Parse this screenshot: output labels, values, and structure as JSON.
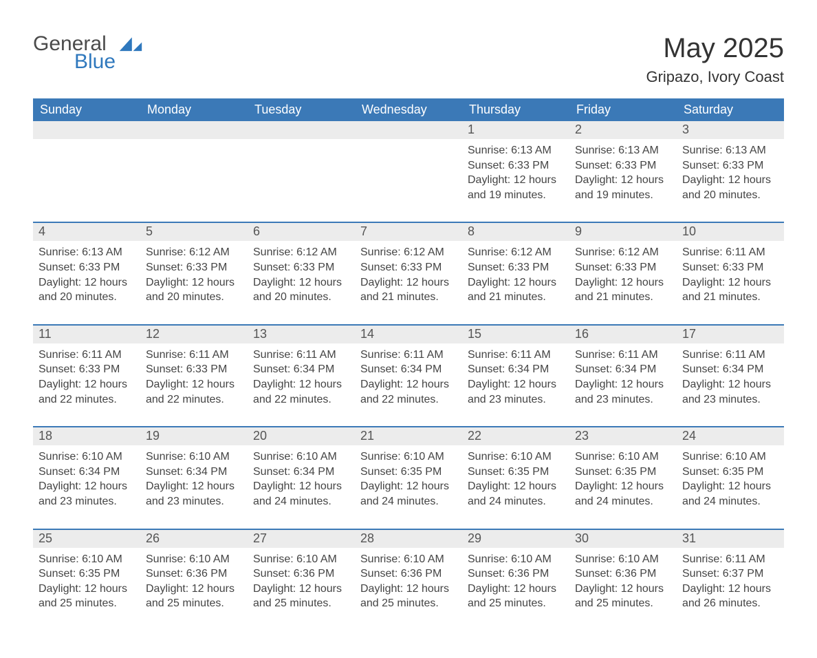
{
  "brand": {
    "word1": "General",
    "word2": "Blue",
    "accent": "#2f78bd"
  },
  "title": "May 2025",
  "subtitle": "Gripazo, Ivory Coast",
  "colors": {
    "header_bg": "#3b79b7",
    "header_text": "#ffffff",
    "row_divider": "#3b79b7",
    "daynum_bg": "#ececec",
    "body_text": "#444444",
    "page_bg": "#ffffff"
  },
  "weekdays": [
    "Sunday",
    "Monday",
    "Tuesday",
    "Wednesday",
    "Thursday",
    "Friday",
    "Saturday"
  ],
  "cells": [
    {
      "blank": true
    },
    {
      "blank": true
    },
    {
      "blank": true
    },
    {
      "blank": true
    },
    {
      "day": 1,
      "sunrise": "6:13 AM",
      "sunset": "6:33 PM",
      "daylight": "12 hours and 19 minutes."
    },
    {
      "day": 2,
      "sunrise": "6:13 AM",
      "sunset": "6:33 PM",
      "daylight": "12 hours and 19 minutes."
    },
    {
      "day": 3,
      "sunrise": "6:13 AM",
      "sunset": "6:33 PM",
      "daylight": "12 hours and 20 minutes."
    },
    {
      "day": 4,
      "sunrise": "6:13 AM",
      "sunset": "6:33 PM",
      "daylight": "12 hours and 20 minutes."
    },
    {
      "day": 5,
      "sunrise": "6:12 AM",
      "sunset": "6:33 PM",
      "daylight": "12 hours and 20 minutes."
    },
    {
      "day": 6,
      "sunrise": "6:12 AM",
      "sunset": "6:33 PM",
      "daylight": "12 hours and 20 minutes."
    },
    {
      "day": 7,
      "sunrise": "6:12 AM",
      "sunset": "6:33 PM",
      "daylight": "12 hours and 21 minutes."
    },
    {
      "day": 8,
      "sunrise": "6:12 AM",
      "sunset": "6:33 PM",
      "daylight": "12 hours and 21 minutes."
    },
    {
      "day": 9,
      "sunrise": "6:12 AM",
      "sunset": "6:33 PM",
      "daylight": "12 hours and 21 minutes."
    },
    {
      "day": 10,
      "sunrise": "6:11 AM",
      "sunset": "6:33 PM",
      "daylight": "12 hours and 21 minutes."
    },
    {
      "day": 11,
      "sunrise": "6:11 AM",
      "sunset": "6:33 PM",
      "daylight": "12 hours and 22 minutes."
    },
    {
      "day": 12,
      "sunrise": "6:11 AM",
      "sunset": "6:33 PM",
      "daylight": "12 hours and 22 minutes."
    },
    {
      "day": 13,
      "sunrise": "6:11 AM",
      "sunset": "6:34 PM",
      "daylight": "12 hours and 22 minutes."
    },
    {
      "day": 14,
      "sunrise": "6:11 AM",
      "sunset": "6:34 PM",
      "daylight": "12 hours and 22 minutes."
    },
    {
      "day": 15,
      "sunrise": "6:11 AM",
      "sunset": "6:34 PM",
      "daylight": "12 hours and 23 minutes."
    },
    {
      "day": 16,
      "sunrise": "6:11 AM",
      "sunset": "6:34 PM",
      "daylight": "12 hours and 23 minutes."
    },
    {
      "day": 17,
      "sunrise": "6:11 AM",
      "sunset": "6:34 PM",
      "daylight": "12 hours and 23 minutes."
    },
    {
      "day": 18,
      "sunrise": "6:10 AM",
      "sunset": "6:34 PM",
      "daylight": "12 hours and 23 minutes."
    },
    {
      "day": 19,
      "sunrise": "6:10 AM",
      "sunset": "6:34 PM",
      "daylight": "12 hours and 23 minutes."
    },
    {
      "day": 20,
      "sunrise": "6:10 AM",
      "sunset": "6:34 PM",
      "daylight": "12 hours and 24 minutes."
    },
    {
      "day": 21,
      "sunrise": "6:10 AM",
      "sunset": "6:35 PM",
      "daylight": "12 hours and 24 minutes."
    },
    {
      "day": 22,
      "sunrise": "6:10 AM",
      "sunset": "6:35 PM",
      "daylight": "12 hours and 24 minutes."
    },
    {
      "day": 23,
      "sunrise": "6:10 AM",
      "sunset": "6:35 PM",
      "daylight": "12 hours and 24 minutes."
    },
    {
      "day": 24,
      "sunrise": "6:10 AM",
      "sunset": "6:35 PM",
      "daylight": "12 hours and 24 minutes."
    },
    {
      "day": 25,
      "sunrise": "6:10 AM",
      "sunset": "6:35 PM",
      "daylight": "12 hours and 25 minutes."
    },
    {
      "day": 26,
      "sunrise": "6:10 AM",
      "sunset": "6:36 PM",
      "daylight": "12 hours and 25 minutes."
    },
    {
      "day": 27,
      "sunrise": "6:10 AM",
      "sunset": "6:36 PM",
      "daylight": "12 hours and 25 minutes."
    },
    {
      "day": 28,
      "sunrise": "6:10 AM",
      "sunset": "6:36 PM",
      "daylight": "12 hours and 25 minutes."
    },
    {
      "day": 29,
      "sunrise": "6:10 AM",
      "sunset": "6:36 PM",
      "daylight": "12 hours and 25 minutes."
    },
    {
      "day": 30,
      "sunrise": "6:10 AM",
      "sunset": "6:36 PM",
      "daylight": "12 hours and 25 minutes."
    },
    {
      "day": 31,
      "sunrise": "6:11 AM",
      "sunset": "6:37 PM",
      "daylight": "12 hours and 26 minutes."
    }
  ],
  "labels": {
    "sunrise": "Sunrise:",
    "sunset": "Sunset:",
    "daylight": "Daylight:"
  }
}
